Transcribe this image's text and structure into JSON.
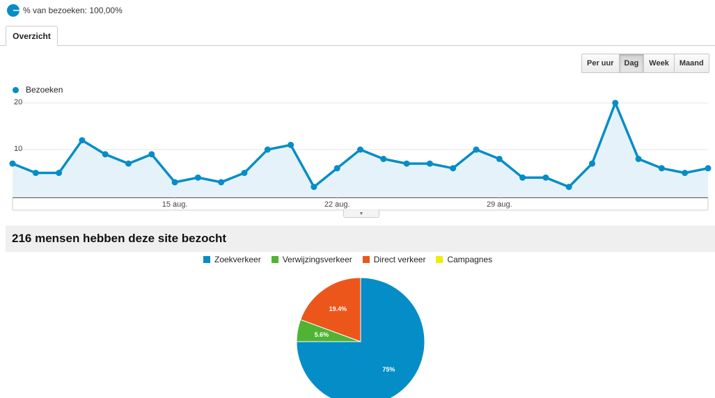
{
  "segment": {
    "label": "% van bezoeken: 100,00%",
    "icon": "pie-segment-icon",
    "color": "#058dc7"
  },
  "tabs": [
    {
      "label": "Overzicht",
      "active": true
    }
  ],
  "granularity": {
    "buttons": [
      {
        "label": "Per uur",
        "active": false
      },
      {
        "label": "Dag",
        "active": true
      },
      {
        "label": "Week",
        "active": false
      },
      {
        "label": "Maand",
        "active": false
      }
    ]
  },
  "line_legend": {
    "label": "Bezoeken",
    "color": "#058dc7"
  },
  "summary": {
    "title": "216 mensen hebben deze site bezocht"
  },
  "pie_legend": [
    {
      "label": "Zoekverkeer",
      "color": "#058dc7"
    },
    {
      "label": "Verwijzingsverkeer",
      "color": "#50b432"
    },
    {
      "label": "Direct verkeer",
      "color": "#ed561b"
    },
    {
      "label": "Campagnes",
      "color": "#edef00"
    }
  ],
  "chart_data": [
    {
      "type": "area",
      "series": [
        {
          "name": "Bezoeken",
          "color": "#058dc7",
          "values": [
            7,
            5,
            5,
            12,
            9,
            7,
            9,
            3,
            4,
            3,
            5,
            10,
            11,
            2,
            6,
            10,
            8,
            7,
            7,
            6,
            10,
            8,
            4,
            4,
            2,
            7,
            20,
            8,
            6,
            5,
            6
          ]
        }
      ],
      "xticks": [
        {
          "index": 7,
          "label": "15 aug."
        },
        {
          "index": 14,
          "label": "22 aug."
        },
        {
          "index": 21,
          "label": "29 aug."
        }
      ],
      "yticks": [
        10,
        20
      ],
      "ylim": [
        0,
        20
      ],
      "grid": true,
      "legend": "top-left"
    },
    {
      "type": "pie",
      "slices": [
        {
          "name": "Zoekverkeer",
          "value": 75,
          "label": "75%",
          "color": "#058dc7"
        },
        {
          "name": "Verwijzingsverkeer",
          "value": 5.6,
          "label": "5.6%",
          "color": "#50b432"
        },
        {
          "name": "Direct verkeer",
          "value": 19.4,
          "label": "19.4%",
          "color": "#ed561b"
        },
        {
          "name": "Campagnes",
          "value": 0,
          "label": "",
          "color": "#edef00"
        }
      ],
      "legend": "top"
    }
  ]
}
